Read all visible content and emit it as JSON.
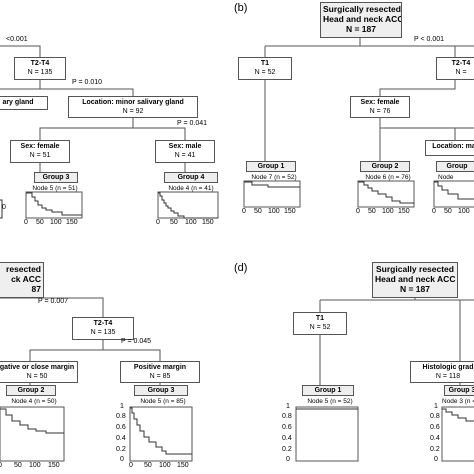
{
  "panels": {
    "b": "(b)",
    "d": "(d)"
  },
  "a": {
    "p_root": "<0.001",
    "t2t4": {
      "title": "T2-T4",
      "n": "N = 135"
    },
    "p_t2t4": "P = 0.010",
    "major": {
      "title": "ary gland"
    },
    "minor": {
      "title": "Location: minor salivary gland",
      "n": "N = 92"
    },
    "p_minor": "P = 0.041",
    "female": {
      "title": "Sex: female",
      "n": "N = 51"
    },
    "male": {
      "title": "Sex: male",
      "n": "N = 41"
    },
    "km3": {
      "group": "Group 3",
      "node": "Node 5 (n = 51)"
    },
    "km4": {
      "group": "Group 4",
      "node": "Node 4 (n = 41)"
    },
    "ticks": [
      "0",
      "50",
      "100",
      "150"
    ],
    "cut_tick": "0"
  },
  "b": {
    "root": {
      "line1": "Surgically resected",
      "line2": "Head and neck ACC",
      "n": "N = 187"
    },
    "p_root": "P < 0.001",
    "t1": {
      "title": "T1",
      "n": "N = 52"
    },
    "t2t4": {
      "title": "T2-T4",
      "n": "N ="
    },
    "female": {
      "title": "Sex: female",
      "n": "N = 76"
    },
    "location": {
      "title": "Location: maj"
    },
    "km1": {
      "group": "Group 1",
      "node": "Node 7 (n = 52)"
    },
    "km2": {
      "group": "Group 2",
      "node": "Node 6 (n = 76)"
    },
    "km3": {
      "group": "Group",
      "node": "Node"
    },
    "ticks": [
      "0",
      "50",
      "100",
      "150"
    ]
  },
  "c": {
    "root": {
      "line1": "resected",
      "line2": "ck ACC",
      "n": "87"
    },
    "p_root": "P = 0.007",
    "t2t4": {
      "title": "T2-T4",
      "n": "N = 135"
    },
    "p_t2t4": "P = 0.045",
    "neg": {
      "title": "gative or close margin",
      "n": "N = 50"
    },
    "pos": {
      "title": "Positive margin",
      "n": "N = 85"
    },
    "km2": {
      "group": "Group 2",
      "node": "Node 4 (n = 50)"
    },
    "km3": {
      "group": "Group 3",
      "node": "Node 5 (n = 85)"
    },
    "ticks_left": [
      "0",
      "50",
      "100",
      "150"
    ],
    "ticks": [
      "0",
      "50",
      "100",
      "150"
    ],
    "yticks": [
      "1",
      "0.8",
      "0.6",
      "0.4",
      "0.2",
      "0"
    ]
  },
  "d": {
    "root": {
      "line1": "Surgically resected",
      "line2": "Head and neck ACC",
      "n": "N = 187"
    },
    "t1": {
      "title": "T1",
      "n": "N = 52"
    },
    "histo": {
      "title": "Histologic grad",
      "n": "N = 118"
    },
    "km1": {
      "group": "Group 1",
      "node": "Node 5 (n = 52)"
    },
    "km3": {
      "group": "Group 3",
      "node": "Node 3 (n ="
    },
    "yticks": [
      "1",
      "0.8",
      "0.6",
      "0.4",
      "0.2",
      "0"
    ]
  },
  "colors": {
    "box_fill": "#efefef",
    "line": "#555555",
    "curve": "#333333"
  }
}
